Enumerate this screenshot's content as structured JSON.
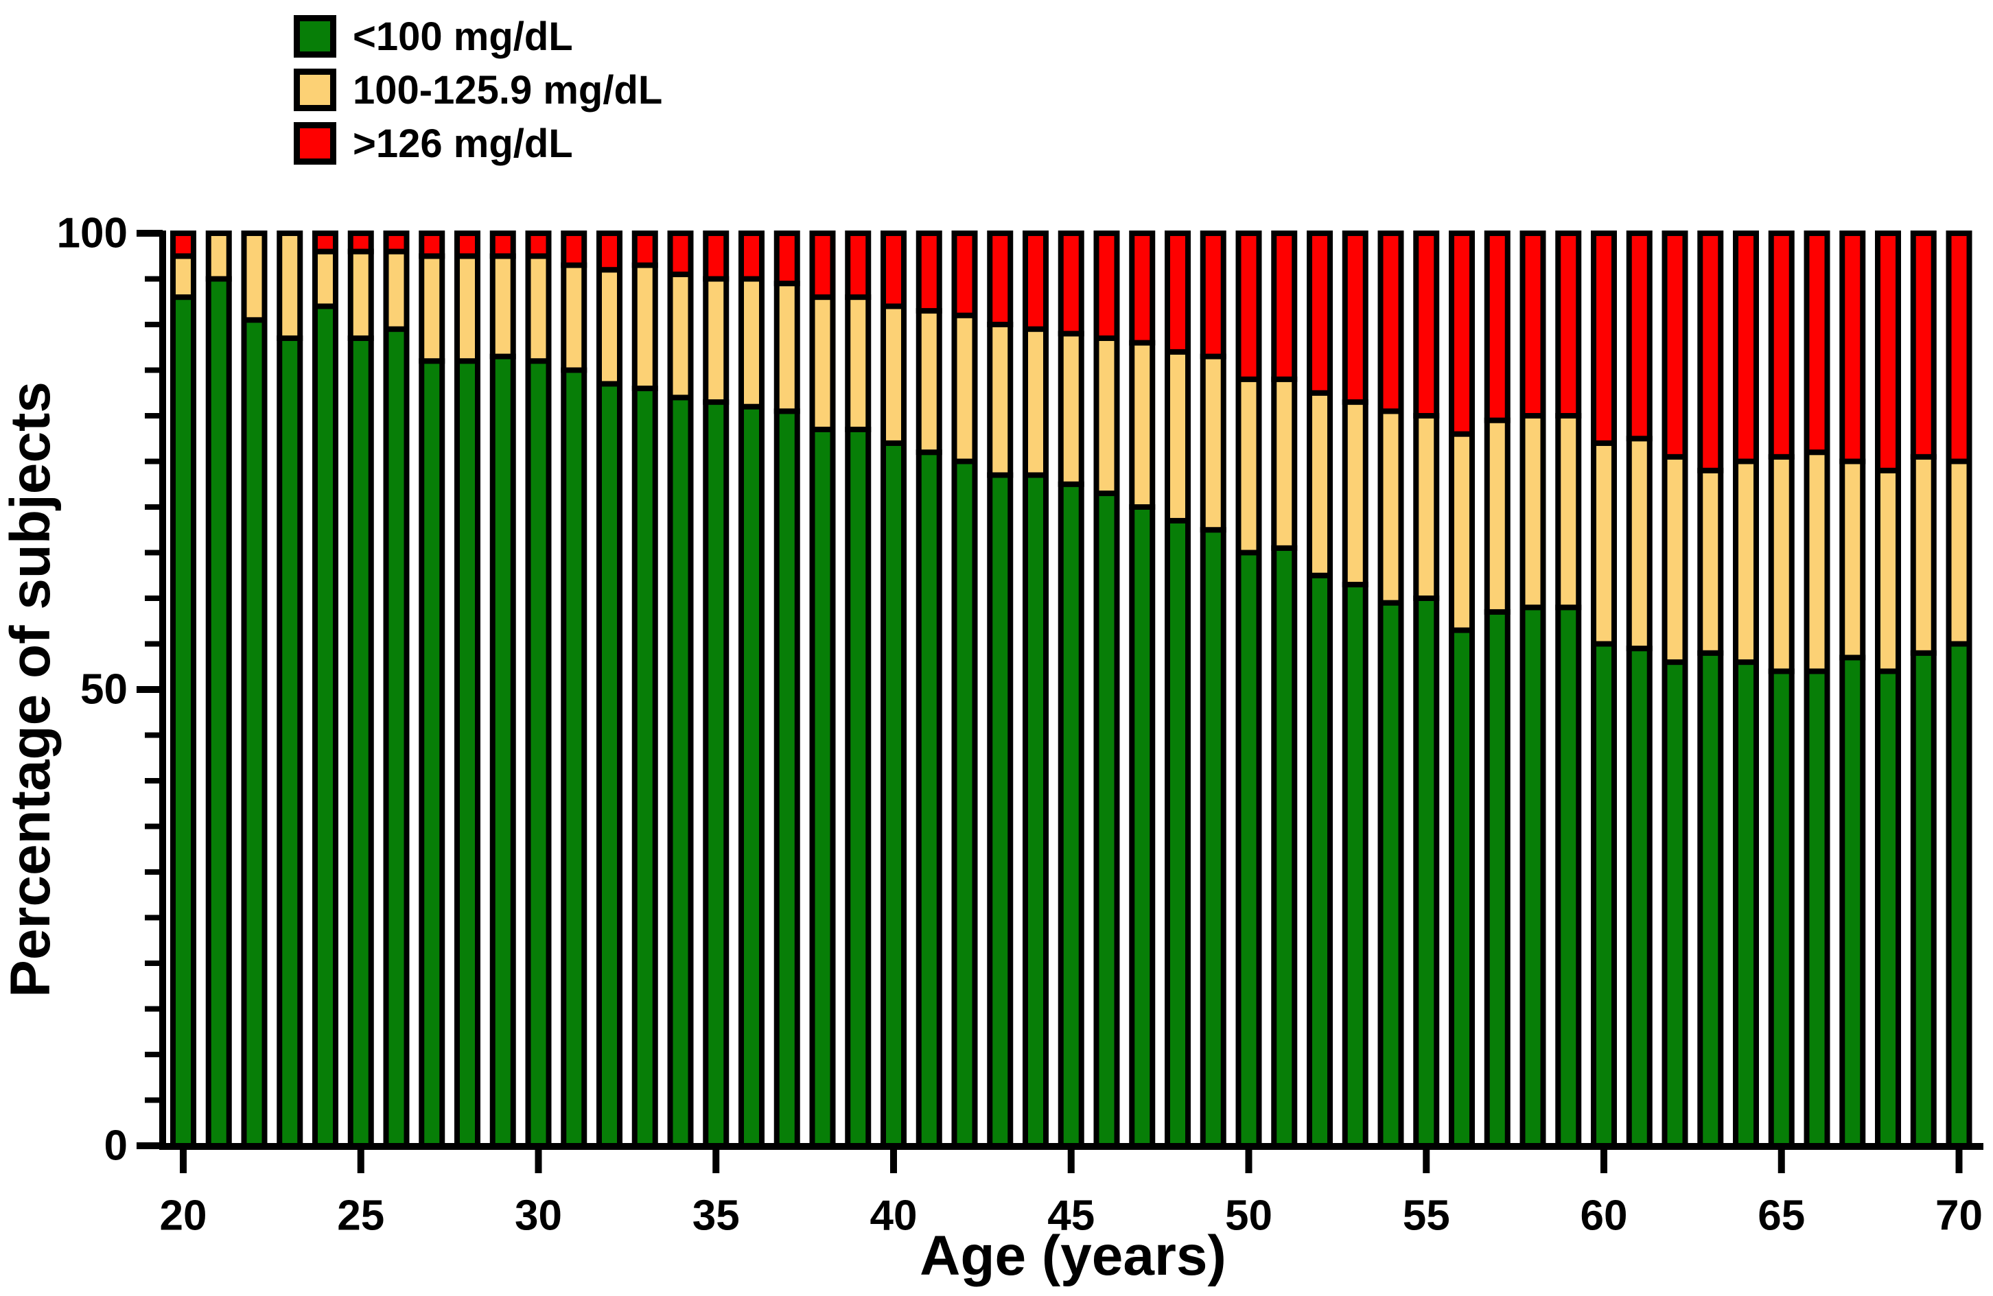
{
  "chart_data": {
    "type": "stacked-bar",
    "title": "",
    "xlabel": "Age (years)",
    "ylabel": "Percentage of subjects",
    "ylim": [
      0,
      100
    ],
    "y_major_ticks": [
      0,
      50,
      100
    ],
    "y_minor_step": 5,
    "x_tick_labels": [
      20,
      25,
      30,
      35,
      40,
      45,
      50,
      55,
      60,
      65,
      70
    ],
    "x": [
      20,
      21,
      22,
      23,
      24,
      25,
      26,
      27,
      28,
      29,
      30,
      31,
      32,
      33,
      34,
      35,
      36,
      37,
      38,
      39,
      40,
      41,
      42,
      43,
      44,
      45,
      46,
      47,
      48,
      49,
      50,
      51,
      52,
      53,
      54,
      55,
      56,
      57,
      58,
      59,
      60,
      61,
      62,
      63,
      64,
      65,
      66,
      67,
      68,
      69,
      70
    ],
    "grid": false,
    "legend_position": "top-left",
    "series": [
      {
        "name": "<100 mg/dL",
        "color": "#077E07",
        "values": [
          93,
          95,
          90.5,
          88.5,
          92,
          88.5,
          89.5,
          86,
          86,
          86.5,
          86,
          85,
          83.5,
          83,
          82,
          81.5,
          81,
          80.5,
          78.5,
          78.5,
          77,
          76,
          75,
          73.5,
          73.5,
          72.5,
          71.5,
          70,
          68.5,
          67.5,
          65,
          65.5,
          62.5,
          61.5,
          59.5,
          60,
          56.5,
          58.5,
          59,
          59,
          55,
          54.5,
          53,
          54,
          53,
          52,
          52,
          53.5,
          52,
          54,
          55
        ]
      },
      {
        "name": "100-125.9 mg/dL",
        "color": "#FCD175",
        "values": [
          4.5,
          5,
          9.5,
          11.5,
          6,
          9.5,
          8.5,
          11.5,
          11.5,
          11,
          11.5,
          11.5,
          12.5,
          13.5,
          13.5,
          13.5,
          14,
          14,
          14.5,
          14.5,
          15,
          15.5,
          16,
          16.5,
          16,
          16.5,
          17,
          18,
          18.5,
          19,
          19,
          18.5,
          20,
          20,
          21,
          20,
          21.5,
          21,
          21,
          21,
          22,
          23,
          22.5,
          20,
          22,
          23.5,
          24,
          21.5,
          22,
          21.5,
          20
        ]
      },
      {
        "name": ">126 mg/dL",
        "color": "#FE0000",
        "values": [
          2.5,
          0,
          0,
          0,
          2,
          2,
          2,
          2.5,
          2.5,
          2.5,
          2.5,
          3.5,
          4,
          3.5,
          4.5,
          5,
          5,
          5.5,
          7,
          7,
          8,
          8.5,
          9,
          10,
          10.5,
          11,
          11.5,
          12,
          13,
          13.5,
          16,
          16,
          17.5,
          18.5,
          19.5,
          20,
          22,
          20.5,
          20,
          20,
          23,
          22.5,
          24.5,
          26,
          25,
          24.5,
          24,
          25,
          26,
          24.5,
          25
        ]
      }
    ],
    "axis_color": "#000000",
    "background_color": "#ffffff"
  }
}
